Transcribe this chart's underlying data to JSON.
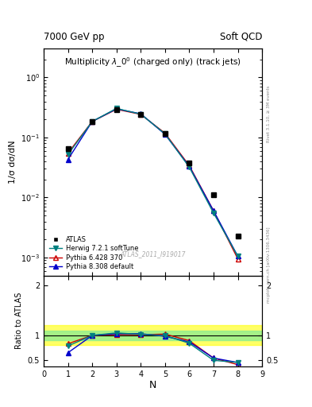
{
  "title_left": "7000 GeV pp",
  "title_right": "Soft QCD",
  "main_title": "Multiplicity $\\lambda\\_0^0$ (charged only) (track jets)",
  "watermark": "ATLAS_2011_I919017",
  "right_label_top": "Rivet 3.1.10, ≥ 3M events",
  "right_label_bottom": "mcplots.cern.ch [arXiv:1306.3436]",
  "xlabel": "N",
  "ylabel_main": "1/σ dσ/dN",
  "ylabel_ratio": "Ratio to ATLAS",
  "x_data": [
    1,
    2,
    3,
    4,
    5,
    6,
    7,
    8
  ],
  "atlas_y": [
    0.066,
    0.185,
    0.29,
    0.24,
    0.115,
    0.038,
    0.011,
    0.0023
  ],
  "herwig_y": [
    0.052,
    0.185,
    0.305,
    0.245,
    0.115,
    0.032,
    0.0055,
    0.00105
  ],
  "pythia6_y": [
    0.055,
    0.185,
    0.295,
    0.243,
    0.118,
    0.034,
    0.006,
    0.00095
  ],
  "pythia8_y": [
    0.043,
    0.185,
    0.3,
    0.248,
    0.113,
    0.033,
    0.006,
    0.00105
  ],
  "herwig_ratio": [
    0.788,
    1.0,
    1.05,
    1.02,
    1.0,
    0.842,
    0.5,
    0.457
  ],
  "pythia6_ratio": [
    0.833,
    1.0,
    1.017,
    1.013,
    1.026,
    0.895,
    0.545,
    0.413
  ],
  "pythia8_ratio": [
    0.652,
    1.0,
    1.034,
    1.033,
    0.983,
    0.868,
    0.545,
    0.457
  ],
  "atlas_color": "#000000",
  "herwig_color": "#008080",
  "pythia6_color": "#cc0000",
  "pythia8_color": "#0000cc",
  "green_band_lo": 0.9,
  "green_band_hi": 1.1,
  "yellow_band_lo": 0.8,
  "yellow_band_hi": 1.2,
  "ylim_main": [
    0.0005,
    3.0
  ],
  "ylim_ratio": [
    0.38,
    2.2
  ],
  "yticks_ratio": [
    0.5,
    1.0,
    2.0
  ],
  "legend_labels": [
    "ATLAS",
    "Herwig 7.2.1 softTune",
    "Pythia 6.428 370",
    "Pythia 8.308 default"
  ]
}
